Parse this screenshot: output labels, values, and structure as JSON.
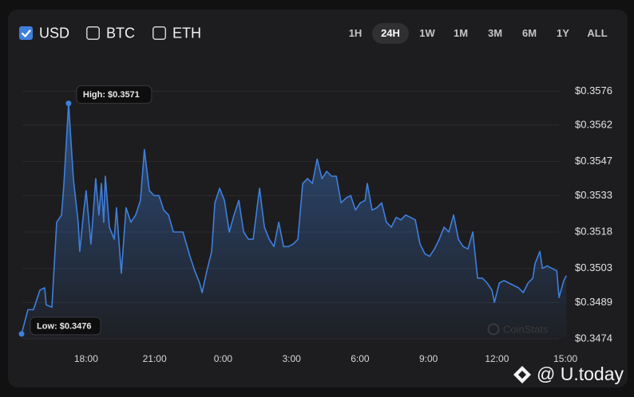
{
  "controls": {
    "currencies": [
      {
        "label": "USD",
        "checked": true
      },
      {
        "label": "BTC",
        "checked": false
      },
      {
        "label": "ETH",
        "checked": false
      }
    ],
    "ranges": [
      {
        "label": "1H",
        "selected": false
      },
      {
        "label": "24H",
        "selected": true
      },
      {
        "label": "1W",
        "selected": false
      },
      {
        "label": "1M",
        "selected": false
      },
      {
        "label": "3M",
        "selected": false
      },
      {
        "label": "6M",
        "selected": false
      },
      {
        "label": "1Y",
        "selected": false
      },
      {
        "label": "ALL",
        "selected": false
      }
    ]
  },
  "chart_data": {
    "type": "area",
    "color": "#3f7fdc",
    "grid": true,
    "x": [
      15.17,
      15.45,
      15.69,
      15.97,
      16.18,
      16.25,
      16.5,
      16.71,
      16.92,
      17.02,
      17.23,
      17.44,
      17.65,
      17.72,
      17.9,
      18.0,
      18.21,
      18.42,
      18.56,
      18.67,
      18.77,
      18.84,
      19.02,
      19.23,
      19.33,
      19.54,
      19.75,
      19.96,
      20.17,
      20.38,
      20.55,
      20.77,
      20.98,
      21.19,
      21.4,
      21.61,
      21.82,
      22.03,
      22.24,
      22.55,
      22.76,
      22.97,
      23.08,
      23.29,
      23.5,
      23.64,
      23.85,
      24.06,
      24.27,
      24.48,
      24.69,
      24.9,
      25.11,
      25.32,
      25.53,
      25.6,
      25.81,
      26.02,
      26.23,
      26.44,
      26.65,
      26.86,
      27.07,
      27.28,
      27.49,
      27.7,
      27.91,
      28.12,
      28.33,
      28.54,
      28.75,
      28.96,
      29.17,
      29.38,
      29.59,
      29.8,
      30.01,
      30.22,
      30.32,
      30.53,
      30.74,
      30.95,
      31.16,
      31.37,
      31.58,
      31.79,
      32.0,
      32.21,
      32.42,
      32.63,
      32.84,
      33.05,
      33.26,
      33.47,
      33.68,
      33.89,
      34.1,
      34.31,
      34.52,
      34.73,
      34.94,
      35.15,
      35.36,
      35.57,
      35.78,
      35.89,
      36.1,
      36.31,
      36.52,
      36.73,
      36.94,
      37.15,
      37.36,
      37.57,
      37.67,
      37.88,
      37.99,
      38.2,
      38.41,
      38.62,
      38.72,
      38.93,
      39.04
    ],
    "values": [
      0.3476,
      0.3486,
      0.3486,
      0.3494,
      0.3495,
      0.3488,
      0.3487,
      0.3522,
      0.3525,
      0.3537,
      0.3571,
      0.354,
      0.3522,
      0.351,
      0.3527,
      0.3535,
      0.3513,
      0.354,
      0.3525,
      0.3538,
      0.3522,
      0.3541,
      0.352,
      0.3515,
      0.3528,
      0.3501,
      0.3528,
      0.3522,
      0.3525,
      0.3531,
      0.3552,
      0.3535,
      0.3533,
      0.3533,
      0.3527,
      0.3525,
      0.3518,
      0.3518,
      0.3518,
      0.3508,
      0.3502,
      0.3497,
      0.3493,
      0.3502,
      0.351,
      0.353,
      0.3536,
      0.3531,
      0.3518,
      0.3525,
      0.3531,
      0.3518,
      0.3515,
      0.3515,
      0.3531,
      0.3536,
      0.352,
      0.3515,
      0.3512,
      0.3522,
      0.3512,
      0.3512,
      0.3513,
      0.3515,
      0.3538,
      0.354,
      0.3538,
      0.3548,
      0.354,
      0.3543,
      0.3541,
      0.3541,
      0.353,
      0.3532,
      0.3533,
      0.3527,
      0.353,
      0.3531,
      0.3538,
      0.3527,
      0.3528,
      0.353,
      0.3522,
      0.352,
      0.3524,
      0.3523,
      0.3525,
      0.3524,
      0.3523,
      0.3513,
      0.3509,
      0.3508,
      0.3511,
      0.3515,
      0.352,
      0.3518,
      0.3525,
      0.3515,
      0.3512,
      0.3511,
      0.3518,
      0.3499,
      0.3499,
      0.3497,
      0.3494,
      0.3489,
      0.3497,
      0.3498,
      0.3497,
      0.3496,
      0.3495,
      0.3493,
      0.3497,
      0.3499,
      0.3505,
      0.351,
      0.3503,
      0.3504,
      0.3503,
      0.3502,
      0.3491,
      0.3498,
      0.35
    ],
    "xlim": [
      15.1,
      39.1
    ],
    "ylim": [
      0.3474,
      0.3584
    ],
    "xticks": [
      {
        "value": 18,
        "label": "18:00"
      },
      {
        "value": 21,
        "label": "21:00"
      },
      {
        "value": 24,
        "label": "0:00"
      },
      {
        "value": 27,
        "label": "3:00"
      },
      {
        "value": 30,
        "label": "6:00"
      },
      {
        "value": 33,
        "label": "9:00"
      },
      {
        "value": 36,
        "label": "12:00"
      },
      {
        "value": 39,
        "label": "15:00"
      }
    ],
    "yticks": [
      {
        "value": 0.3576,
        "label": "$0.3576"
      },
      {
        "value": 0.3562,
        "label": "$0.3562"
      },
      {
        "value": 0.3547,
        "label": "$0.3547"
      },
      {
        "value": 0.3533,
        "label": "$0.3533"
      },
      {
        "value": 0.3518,
        "label": "$0.3518"
      },
      {
        "value": 0.3503,
        "label": "$0.3503"
      },
      {
        "value": 0.3489,
        "label": "$0.3489"
      },
      {
        "value": 0.3474,
        "label": "$0.3474"
      }
    ],
    "annotations": [
      {
        "label": "High: $0.3571",
        "x": 17.23,
        "y": 0.3571
      },
      {
        "label": "Low: $0.3476",
        "x": 15.17,
        "y": 0.3476
      }
    ]
  },
  "watermarks": [
    "CoinStats",
    "@ U.today"
  ]
}
